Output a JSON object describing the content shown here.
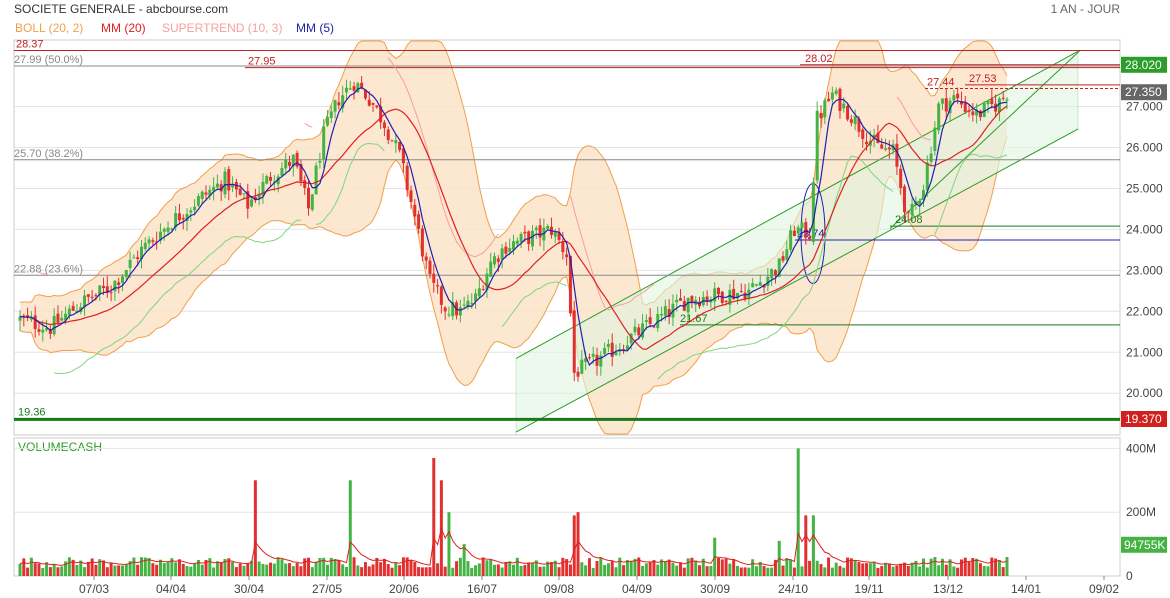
{
  "header": {
    "title": "SOCIETE GENERALE - abcbourse.com",
    "period": "1 AN - JOUR"
  },
  "legend": [
    {
      "label": "BOLL (20, 2)",
      "color": "#f0a04a"
    },
    {
      "label": "MM (20)",
      "color": "#e02020"
    },
    {
      "label": "SUPERTREND (10, 3)",
      "color": "#f4a0a0"
    },
    {
      "label": "MM (5)",
      "color": "#2020b0"
    }
  ],
  "colors": {
    "up": "#44b344",
    "down": "#e03030",
    "boll_fill": "#fbe3c8",
    "boll_line": "#f0a04a",
    "mm20": "#e02020",
    "mm5": "#2020b0",
    "supertrend_up": "#7ed67e",
    "supertrend_down": "#f4a0a0",
    "channel": "#2a9d2a",
    "channel_fill": "#dff5df",
    "grid": "#e4e4e4"
  },
  "chart_data": [
    {
      "type": "candlestick",
      "title": "SOCIETE GENERALE",
      "x_tick_labels": [
        "07/03",
        "04/04",
        "30/04",
        "27/05",
        "20/06",
        "16/07",
        "09/08",
        "04/09",
        "30/09",
        "24/10",
        "19/11",
        "13/12",
        "14/01",
        "09/02"
      ],
      "y_tick_labels": [
        "20.000",
        "21.000",
        "22.000",
        "23.000",
        "24.000",
        "25.000",
        "26.000",
        "27.000"
      ],
      "ylim": [
        19.0,
        28.9
      ],
      "price_path": [
        [
          0,
          21.8
        ],
        [
          8,
          21.6
        ],
        [
          16,
          22.2
        ],
        [
          24,
          22.6
        ],
        [
          32,
          23.5
        ],
        [
          40,
          24.2
        ],
        [
          48,
          24.8
        ],
        [
          54,
          25.2
        ],
        [
          60,
          24.6
        ],
        [
          66,
          25.3
        ],
        [
          72,
          25.7
        ],
        [
          76,
          24.5
        ],
        [
          80,
          26.3
        ],
        [
          84,
          27.2
        ],
        [
          88,
          27.6
        ],
        [
          92,
          27.2
        ],
        [
          96,
          26.6
        ],
        [
          100,
          25.8
        ],
        [
          104,
          24.3
        ],
        [
          108,
          22.7
        ],
        [
          112,
          22.1
        ],
        [
          116,
          22.0
        ],
        [
          120,
          22.3
        ],
        [
          124,
          23.2
        ],
        [
          128,
          23.6
        ],
        [
          134,
          23.8
        ],
        [
          140,
          24.0
        ],
        [
          144,
          23.4
        ],
        [
          146,
          20.5
        ],
        [
          152,
          20.8
        ],
        [
          160,
          21.3
        ],
        [
          168,
          21.8
        ],
        [
          176,
          22.3
        ],
        [
          184,
          22.4
        ],
        [
          192,
          22.5
        ],
        [
          200,
          23.1
        ],
        [
          204,
          24.0
        ],
        [
          208,
          23.9
        ],
        [
          210,
          26.7
        ],
        [
          214,
          27.3
        ],
        [
          218,
          26.9
        ],
        [
          222,
          26.4
        ],
        [
          226,
          26.0
        ],
        [
          230,
          25.9
        ],
        [
          234,
          24.2
        ],
        [
          238,
          25.1
        ],
        [
          242,
          27.0
        ],
        [
          246,
          27.2
        ],
        [
          252,
          26.8
        ],
        [
          258,
          27.1
        ],
        [
          260,
          27.35
        ]
      ],
      "horizontal_levels": [
        {
          "value": 28.37,
          "label": "28.37",
          "color": "#c02020"
        },
        {
          "value": 28.02,
          "label": "28.02",
          "color": "#c02020"
        },
        {
          "value": 27.95,
          "label": "27.95",
          "color": "#c02020"
        },
        {
          "value": 27.99,
          "label": "27.99  (50.0%)",
          "color": "#888888"
        },
        {
          "value": 25.7,
          "label": "25.70  (38.2%)",
          "color": "#888888"
        },
        {
          "value": 22.88,
          "label": "22.88  (23.6%)",
          "color": "#888888"
        },
        {
          "value": 19.36,
          "label": "19.36",
          "color": "#1a7a1a"
        },
        {
          "value": 27.44,
          "label": "27.44",
          "color": "#c02020"
        },
        {
          "value": 27.53,
          "label": "27.53",
          "color": "#c02020"
        },
        {
          "value": 24.08,
          "label": "24.08",
          "color": "#1a7a1a"
        },
        {
          "value": 23.74,
          "label": "23.74",
          "color": "#2020b0"
        },
        {
          "value": 21.67,
          "label": "21.67",
          "color": "#1a7a1a"
        }
      ],
      "price_badges": [
        {
          "value": 28.02,
          "label": "28.020",
          "color": "#2a9d2a"
        },
        {
          "value": 27.35,
          "label": "27.350",
          "color": "#666666"
        },
        {
          "value": 19.37,
          "label": "19.370",
          "color": "#d02020"
        }
      ]
    },
    {
      "type": "bar",
      "title": "VOLUMECASH",
      "y_tick_labels": [
        "400M",
        "200M",
        "0"
      ],
      "ylim": [
        0,
        420
      ],
      "last_value_label": "94755K",
      "spikes": [
        [
          62,
          300
        ],
        [
          87,
          300
        ],
        [
          109,
          370
        ],
        [
          111,
          300
        ],
        [
          113,
          200
        ],
        [
          117,
          100
        ],
        [
          146,
          190
        ],
        [
          147,
          200
        ],
        [
          183,
          120
        ],
        [
          200,
          110
        ],
        [
          205,
          400
        ],
        [
          207,
          190
        ],
        [
          209,
          190
        ]
      ]
    }
  ]
}
